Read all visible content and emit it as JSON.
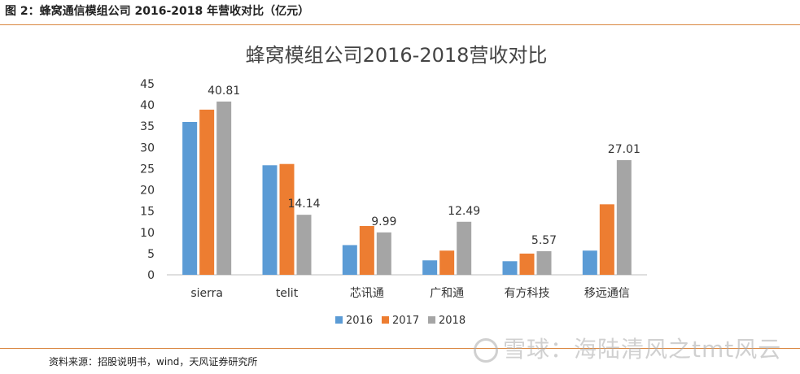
{
  "caption": "图 2：蜂窝通信模组公司 2016-2018 年营收对比（亿元）",
  "source": "资料来源：招股说明书，wind，天风证券研究所",
  "watermark": "雪球：海陆清风之tmt风云",
  "chart_data": {
    "type": "bar",
    "title": "蜂窝模组公司2016-2018营收对比",
    "categories": [
      "sierra",
      "telit",
      "芯讯通",
      "广和通",
      "有方科技",
      "移远通信"
    ],
    "series": [
      {
        "name": "2016",
        "color": "#5b9bd5",
        "values": [
          36.0,
          25.8,
          7.0,
          3.4,
          3.2,
          5.7
        ]
      },
      {
        "name": "2017",
        "color": "#ed7d31",
        "values": [
          38.9,
          26.1,
          11.5,
          5.7,
          5.0,
          16.6
        ]
      },
      {
        "name": "2018",
        "color": "#a5a5a5",
        "values": [
          40.81,
          14.14,
          9.99,
          12.49,
          5.57,
          27.01
        ]
      }
    ],
    "data_labels": [
      "40.81",
      "14.14",
      "9.99",
      "12.49",
      "5.57",
      "27.01"
    ],
    "labeled_series": "2018",
    "ylim": [
      0,
      45
    ],
    "yticks": [
      "0",
      "5",
      "10",
      "15",
      "20",
      "25",
      "30",
      "35",
      "40",
      "45"
    ],
    "grid": false,
    "legend": "bottom"
  }
}
